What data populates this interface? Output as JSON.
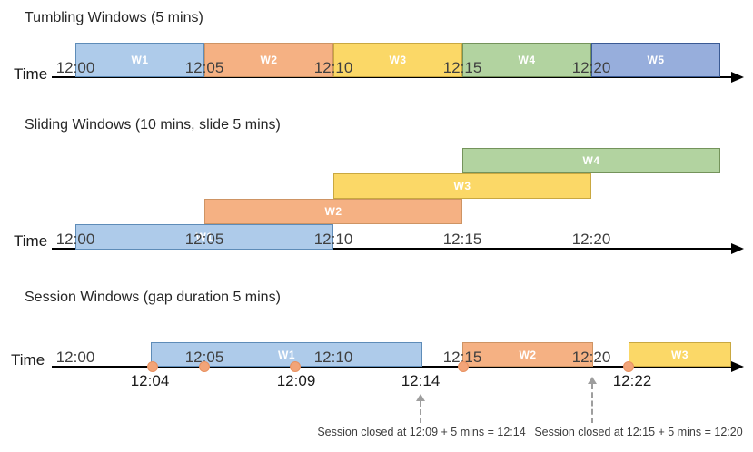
{
  "palette": {
    "window_blue": "#AECBEA",
    "window_blue_border": "#5E8CB8",
    "window_orange": "#F5B183",
    "window_orange_border": "#CE9464",
    "window_yellow": "#FBD867",
    "window_yellow_border": "#C9A841",
    "window_green": "#B2D3A0",
    "window_green_border": "#74935B",
    "window_violet": "#97AEDC",
    "window_violet_border": "#3A5A94",
    "event_dot": "#F2A478",
    "timeline": "#000000",
    "dashed_arrow": "#9E9E9E"
  },
  "tumbling": {
    "title": "Tumbling Windows (5 mins)",
    "time_label": "Time",
    "ticks": [
      "12:00",
      "12:05",
      "12:10",
      "12:15",
      "12:20"
    ],
    "windows": [
      {
        "label": "W1",
        "color": "blue",
        "start": "12:00",
        "end": "12:05"
      },
      {
        "label": "W2",
        "color": "orange",
        "start": "12:05",
        "end": "12:10"
      },
      {
        "label": "W3",
        "color": "yellow",
        "start": "12:10",
        "end": "12:15"
      },
      {
        "label": "W4",
        "color": "green",
        "start": "12:15",
        "end": "12:20"
      },
      {
        "label": "W5",
        "color": "violet",
        "start": "12:20",
        "end": "12:25"
      }
    ]
  },
  "sliding": {
    "title": "Sliding Windows (10 mins, slide 5 mins)",
    "time_label": "Time",
    "ticks": [
      "12:00",
      "12:05",
      "12:10",
      "12:15",
      "12:20"
    ],
    "windows": [
      {
        "label": "W1",
        "color": "blue",
        "start": "12:00",
        "end": "12:10"
      },
      {
        "label": "W2",
        "color": "orange",
        "start": "12:05",
        "end": "12:15"
      },
      {
        "label": "W3",
        "color": "yellow",
        "start": "12:10",
        "end": "12:20"
      },
      {
        "label": "W4",
        "color": "green",
        "start": "12:15",
        "end": "12:25"
      }
    ]
  },
  "session": {
    "title": "Session Windows (gap duration 5 mins)",
    "time_label": "Time",
    "ticks": [
      "12:00",
      "12:05",
      "12:10",
      "12:15",
      "12:20"
    ],
    "windows": [
      {
        "label": "W1",
        "color": "blue",
        "start": "12:04",
        "end": "12:14"
      },
      {
        "label": "W2",
        "color": "orange",
        "start": "12:15",
        "end": "12:20"
      },
      {
        "label": "W3",
        "color": "yellow",
        "start": "12:22"
      }
    ],
    "event_labels": [
      "12:04",
      "12:09",
      "12:14",
      "12:22"
    ],
    "annotations": [
      "Session closed at 12:09 + 5 mins = 12:14",
      "Session closed at 12:15 + 5 mins = 12:20"
    ]
  }
}
